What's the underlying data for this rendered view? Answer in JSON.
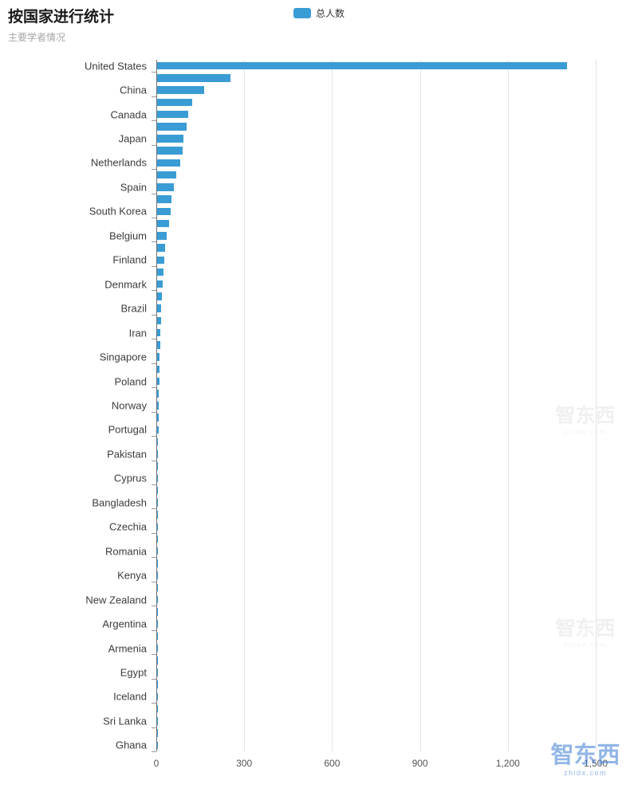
{
  "header": {
    "title": "按国家进行统计",
    "subtitle": "主要学者情况"
  },
  "legend": {
    "label": "总人数",
    "color": "#3a9cd4"
  },
  "watermark": {
    "text": "智东西",
    "subtext": "zhidx.com"
  },
  "chart_data": {
    "type": "bar",
    "orientation": "horizontal",
    "series_name": "总人数",
    "bar_color": "#3a9cd4",
    "grid": true,
    "legend_position": "top-center",
    "xlim": [
      0,
      1500
    ],
    "x_ticks": [
      0,
      300,
      600,
      900,
      1200,
      1500
    ],
    "x_tick_labels": [
      "0",
      "300",
      "600",
      "900",
      "1,200",
      "1,500"
    ],
    "note": "axis labels shown every other category; unlabeled intermediate bars have empty-string labels",
    "categories": [
      "United States",
      "",
      "China",
      "",
      "Canada",
      "",
      "Japan",
      "",
      "Netherlands",
      "",
      "Spain",
      "",
      "South Korea",
      "",
      "Belgium",
      "",
      "Finland",
      "",
      "Denmark",
      "",
      "Brazil",
      "",
      "Iran",
      "",
      "Singapore",
      "",
      "Poland",
      "",
      "Norway",
      "",
      "Portugal",
      "",
      "Pakistan",
      "",
      "Cyprus",
      "",
      "Bangladesh",
      "",
      "Czechia",
      "",
      "Romania",
      "",
      "Kenya",
      "",
      "New Zealand",
      "",
      "Argentina",
      "",
      "Armenia",
      "",
      "Egypt",
      "",
      "Iceland",
      "",
      "Sri Lanka",
      "",
      "Ghana"
    ],
    "values": [
      1400,
      250,
      160,
      120,
      106,
      100,
      90,
      86,
      78,
      65,
      56,
      50,
      45,
      40,
      34,
      27,
      24,
      21,
      18,
      16,
      14,
      13,
      12,
      10,
      9,
      8,
      7,
      6,
      6,
      5,
      5,
      4,
      4,
      3,
      3,
      3,
      3,
      2,
      2,
      2,
      2,
      2,
      2,
      2,
      2,
      1,
      1,
      1,
      1,
      1,
      1,
      1,
      1,
      1,
      1,
      1,
      1
    ]
  }
}
